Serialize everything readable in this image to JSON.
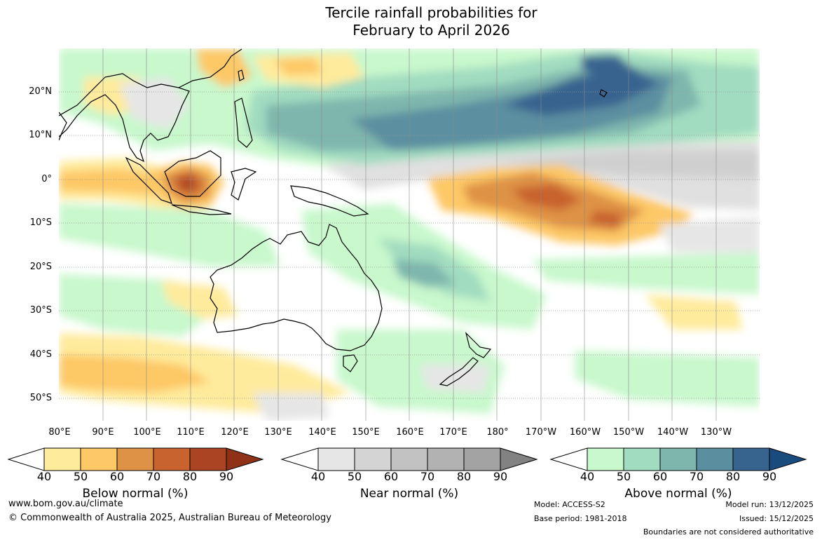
{
  "title": {
    "line1": "Tercile rainfall probabilities for",
    "line2": "February to April 2026"
  },
  "map": {
    "lat_labels": [
      "20°N",
      "10°N",
      "0°",
      "10°S",
      "20°S",
      "30°S",
      "40°S",
      "50°S"
    ],
    "lon_labels": [
      "80°E",
      "90°E",
      "100°E",
      "110°E",
      "120°E",
      "130°E",
      "140°E",
      "150°E",
      "160°E",
      "170°E",
      "180°",
      "170°W",
      "160°W",
      "150°W",
      "140°W",
      "130°W"
    ]
  },
  "legend": {
    "ticks": [
      "40",
      "50",
      "60",
      "70",
      "80",
      "90"
    ],
    "below": {
      "label": "Below normal (%)",
      "colors": [
        "#ffffff",
        "#ffeb9c",
        "#fdc866",
        "#de9245",
        "#c8622f",
        "#aa4423",
        "#8e3117"
      ]
    },
    "near": {
      "label": "Near normal (%)",
      "colors": [
        "#ffffff",
        "#e6e6e6",
        "#d4d4d4",
        "#c2c2c2",
        "#b2b2b2",
        "#a3a3a3",
        "#828282"
      ]
    },
    "above": {
      "label": "Above normal (%)",
      "colors": [
        "#ffffff",
        "#c8f8cc",
        "#a1dbc0",
        "#7eb6ad",
        "#5b8fa0",
        "#37638f",
        "#194b7d"
      ]
    }
  },
  "footer": {
    "website": "www.bom.gov.au/climate",
    "copyright": "© Commonwealth of Australia 2025, Australian Bureau of Meteorology",
    "model": "Model: ACCESS-S2",
    "base_period": "Base period: 1981-2018",
    "model_run": "Model run: 13/12/2025",
    "issued": "Issued: 15/12/2025",
    "disclaimer": "Boundaries are not considered authoritative"
  }
}
